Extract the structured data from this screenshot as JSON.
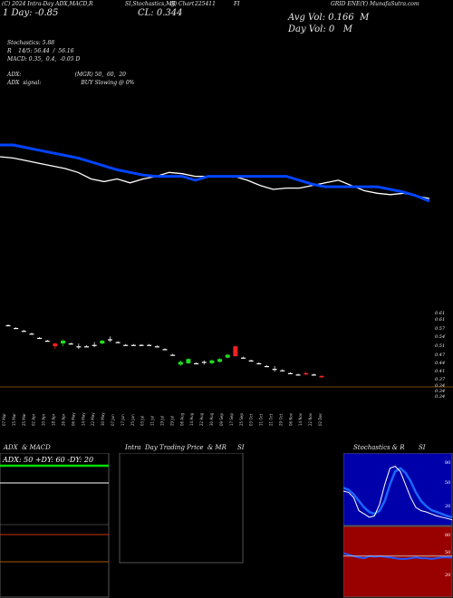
{
  "header": {
    "top_left": "(C) 2024 Intra-Day ADX,MACD,R",
    "top_center1": "SI,Stochastics,MR",
    "top_center2": "(J) Chart",
    "top_center3": "225411",
    "top_center4": "FI",
    "top_right": "GRID ENE(Y) MunafaSutra.com",
    "day_line": "1 Day: -0.85",
    "cl": "CL: 0.344",
    "avg_vol": "Avg Vol: 0.166  M",
    "day_vol": "Day Vol: 0   M"
  },
  "indicators": {
    "stoch": "Stochastics: 5.88",
    "rsi": "R    14/5: 56.44  /  56.16",
    "macd": "MACD: 0.35,  0.4,  -0.05 D",
    "adx": "ADX:                               (MGR) 50,  60,  20",
    "adx_signal": "ADX  signal:                       BUY Slowing @ 0%"
  },
  "price_axis": [
    "0.61",
    "0.61",
    "0.57",
    "0.54",
    "0.51",
    "0.47",
    "0.44",
    "0.41",
    "0.37",
    "0.34",
    "0.34",
    "0.34"
  ],
  "date_axis": [
    "07 Mar",
    "15 Mar",
    "25 Mar",
    "02 Apr",
    "10 Apr",
    "18 Apr",
    "26 Apr",
    "06 May",
    "14 May",
    "22 May",
    "30 May",
    "07 Jun",
    "17 Jun",
    "25 Jun",
    "03 Jul",
    "11 Jul",
    "19 Jul",
    "29 Jul",
    "06 Aug",
    "14 Aug",
    "22 Aug",
    "30 Aug",
    "09 Sep",
    "17 Sep",
    "25 Sep",
    "03 Oct",
    "11 Oct",
    "21 Oct",
    "29 Oct",
    "06 Nov",
    "14 Nov",
    "22 Nov",
    "02 Dec"
  ],
  "panels": {
    "adx_title": "ADX  & MACD",
    "adx_values": "ADX: 50  +DY: 60  -DY: 20",
    "intraday_title": "Intra  Day Trading Price  & MR",
    "intraday_si": "SI",
    "stoch_title": "Stochastics & R",
    "stoch_si": "SI",
    "stoch_axis": [
      "80",
      "50",
      "20"
    ],
    "rsi_axis": [
      "80",
      "50",
      "20"
    ]
  },
  "colors": {
    "background": "#000000",
    "blue_line": "#0044ff",
    "white_line": "#ffffff",
    "up_candle": "#22dd22",
    "down_candle": "#ee2222",
    "rsi_panel": "#990000",
    "stoch_panel": "#0000aa"
  },
  "chart_data": {
    "type": "candlestick",
    "blue_series": [
      0.485,
      0.485,
      0.483,
      0.481,
      0.479,
      0.477,
      0.475,
      0.472,
      0.469,
      0.466,
      0.464,
      0.462,
      0.461,
      0.461,
      0.461,
      0.458,
      0.461,
      0.461,
      0.461,
      0.461,
      0.461,
      0.461,
      0.461,
      0.458,
      0.455,
      0.453,
      0.453,
      0.453,
      0.453,
      0.453,
      0.451,
      0.449,
      0.446,
      0.442
    ],
    "white_series": [
      0.476,
      0.475,
      0.473,
      0.471,
      0.469,
      0.467,
      0.464,
      0.459,
      0.457,
      0.459,
      0.456,
      0.459,
      0.461,
      0.464,
      0.463,
      0.461,
      0.461,
      0.461,
      0.461,
      0.458,
      0.454,
      0.451,
      0.452,
      0.452,
      0.454,
      0.456,
      0.458,
      0.454,
      0.45,
      0.448,
      0.447,
      0.448,
      0.446,
      0.444
    ],
    "candles": [
      {
        "o": 0.575,
        "c": 0.575,
        "h": 0.578,
        "l": 0.572
      },
      {
        "o": 0.565,
        "c": 0.565,
        "h": 0.568,
        "l": 0.562
      },
      {
        "o": 0.555,
        "c": 0.555,
        "h": 0.558,
        "l": 0.552
      },
      {
        "o": 0.545,
        "c": 0.545,
        "h": 0.548,
        "l": 0.542
      },
      {
        "o": 0.53,
        "c": 0.53,
        "h": 0.533,
        "l": 0.527
      },
      {
        "o": 0.52,
        "c": 0.52,
        "h": 0.523,
        "l": 0.517
      },
      {
        "o": 0.51,
        "c": 0.5,
        "h": 0.513,
        "l": 0.49
      },
      {
        "o": 0.51,
        "c": 0.52,
        "h": 0.525,
        "l": 0.5
      },
      {
        "o": 0.51,
        "c": 0.51,
        "h": 0.513,
        "l": 0.507
      },
      {
        "o": 0.5,
        "c": 0.5,
        "h": 0.51,
        "l": 0.49
      },
      {
        "o": 0.5,
        "c": 0.5,
        "h": 0.503,
        "l": 0.497
      },
      {
        "o": 0.505,
        "c": 0.505,
        "h": 0.515,
        "l": 0.497
      },
      {
        "o": 0.51,
        "c": 0.52,
        "h": 0.523,
        "l": 0.507
      },
      {
        "o": 0.525,
        "c": 0.525,
        "h": 0.535,
        "l": 0.515
      },
      {
        "o": 0.515,
        "c": 0.515,
        "h": 0.518,
        "l": 0.512
      },
      {
        "o": 0.505,
        "c": 0.505,
        "h": 0.508,
        "l": 0.502
      },
      {
        "o": 0.505,
        "c": 0.505,
        "h": 0.508,
        "l": 0.502
      },
      {
        "o": 0.505,
        "c": 0.505,
        "h": 0.508,
        "l": 0.502
      },
      {
        "o": 0.505,
        "c": 0.505,
        "h": 0.508,
        "l": 0.502
      },
      {
        "o": 0.5,
        "c": 0.5,
        "h": 0.503,
        "l": 0.497
      },
      {
        "o": 0.49,
        "c": 0.49,
        "h": 0.493,
        "l": 0.487
      },
      {
        "o": 0.47,
        "c": 0.47,
        "h": 0.473,
        "l": 0.467
      },
      {
        "o": 0.435,
        "c": 0.445,
        "h": 0.45,
        "l": 0.43
      },
      {
        "o": 0.44,
        "c": 0.455,
        "h": 0.458,
        "l": 0.437
      },
      {
        "o": 0.44,
        "c": 0.44,
        "h": 0.443,
        "l": 0.437
      },
      {
        "o": 0.445,
        "c": 0.445,
        "h": 0.45,
        "l": 0.435
      },
      {
        "o": 0.44,
        "c": 0.45,
        "h": 0.453,
        "l": 0.437
      },
      {
        "o": 0.445,
        "c": 0.455,
        "h": 0.458,
        "l": 0.442
      },
      {
        "o": 0.46,
        "c": 0.47,
        "h": 0.473,
        "l": 0.457
      },
      {
        "o": 0.5,
        "c": 0.465,
        "h": 0.503,
        "l": 0.462
      },
      {
        "o": 0.46,
        "c": 0.46,
        "h": 0.463,
        "l": 0.457
      },
      {
        "o": 0.45,
        "c": 0.45,
        "h": 0.453,
        "l": 0.447
      },
      {
        "o": 0.44,
        "c": 0.44,
        "h": 0.443,
        "l": 0.437
      },
      {
        "o": 0.43,
        "c": 0.43,
        "h": 0.433,
        "l": 0.427
      },
      {
        "o": 0.42,
        "c": 0.42,
        "h": 0.43,
        "l": 0.41
      },
      {
        "o": 0.415,
        "c": 0.415,
        "h": 0.418,
        "l": 0.412
      },
      {
        "o": 0.405,
        "c": 0.405,
        "h": 0.408,
        "l": 0.402
      },
      {
        "o": 0.4,
        "c": 0.4,
        "h": 0.403,
        "l": 0.397
      },
      {
        "o": 0.405,
        "c": 0.4,
        "h": 0.41,
        "l": 0.397
      },
      {
        "o": 0.4,
        "c": 0.4,
        "h": 0.403,
        "l": 0.397
      },
      {
        "o": 0.395,
        "c": 0.39,
        "h": 0.398,
        "l": 0.387
      }
    ],
    "adx_line": [
      50,
      50,
      50,
      50,
      50,
      50
    ],
    "pdi_line": [
      60,
      60,
      60,
      60,
      60,
      60
    ],
    "mdi_line": [
      20,
      20,
      20,
      20,
      20,
      20
    ],
    "stoch_k": [
      50,
      48,
      40,
      20,
      15,
      10,
      12,
      30,
      60,
      85,
      88,
      80,
      60,
      40,
      25,
      20,
      18,
      15,
      12,
      10,
      8,
      6
    ],
    "stoch_d": [
      55,
      52,
      45,
      35,
      25,
      18,
      15,
      20,
      35,
      60,
      80,
      85,
      78,
      65,
      48,
      35,
      27,
      21,
      18,
      15,
      12,
      10
    ],
    "rsi_values": [
      62,
      60,
      58,
      56,
      55,
      58,
      57,
      58,
      57,
      56,
      55,
      54,
      54,
      55,
      56,
      55,
      55,
      54,
      55,
      56,
      56,
      56
    ]
  }
}
